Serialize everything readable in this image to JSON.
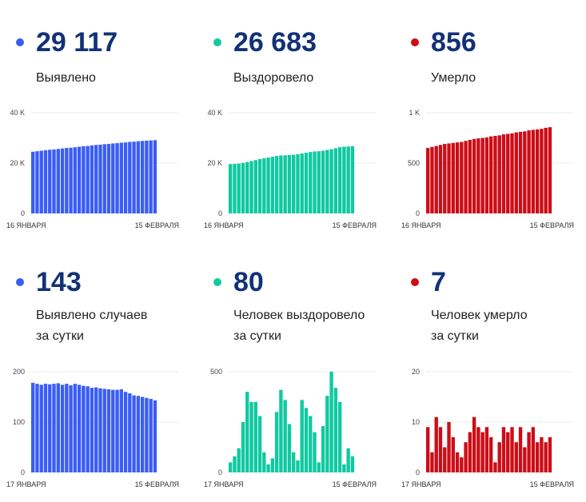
{
  "panels": [
    {
      "number": "29 117",
      "label_lines": [
        "Выявлено"
      ],
      "color": "#3a5df5",
      "chart_data": {
        "type": "bar",
        "ylim": [
          0,
          40000
        ],
        "y_ticks": [
          {
            "value": 0,
            "label": "0"
          },
          {
            "value": 20000,
            "label": "20 K"
          },
          {
            "value": 40000,
            "label": "40 K"
          }
        ],
        "x_labels": [
          "16 ЯНВАРЯ",
          "15 ФЕВРАЛЯ"
        ],
        "values": [
          24500,
          24700,
          24900,
          25100,
          25300,
          25400,
          25600,
          25800,
          26000,
          26100,
          26300,
          26500,
          26700,
          26800,
          27000,
          27200,
          27300,
          27500,
          27600,
          27800,
          27900,
          28100,
          28200,
          28400,
          28500,
          28700,
          28800,
          28900,
          29000,
          29117
        ]
      }
    },
    {
      "number": "26 683",
      "label_lines": [
        "Выздоровело"
      ],
      "color": "#0fc9a1",
      "chart_data": {
        "type": "bar",
        "ylim": [
          0,
          40000
        ],
        "y_ticks": [
          {
            "value": 0,
            "label": "0"
          },
          {
            "value": 20000,
            "label": "20 K"
          },
          {
            "value": 40000,
            "label": "40 K"
          }
        ],
        "x_labels": [
          "16 ЯНВАРЯ",
          "15 ФЕВРАЛЯ"
        ],
        "values": [
          19600,
          19700,
          19800,
          20000,
          20400,
          20800,
          21200,
          21600,
          21900,
          22200,
          22500,
          22800,
          23000,
          23100,
          23200,
          23300,
          23500,
          23800,
          24100,
          24400,
          24600,
          24700,
          24900,
          25200,
          25500,
          25900,
          26300,
          26500,
          26600,
          26683
        ]
      }
    },
    {
      "number": "856",
      "label_lines": [
        "Умерло"
      ],
      "color": "#cc0d17",
      "chart_data": {
        "type": "bar",
        "ylim": [
          0,
          1000
        ],
        "y_ticks": [
          {
            "value": 0,
            "label": "0"
          },
          {
            "value": 500,
            "label": "500"
          },
          {
            "value": 1000,
            "label": "1 K"
          }
        ],
        "x_labels": [
          "16 ЯНВАРЯ",
          "15 ФЕВРАЛЯ"
        ],
        "values": [
          650,
          660,
          670,
          680,
          690,
          695,
          700,
          705,
          710,
          720,
          730,
          740,
          745,
          750,
          755,
          765,
          770,
          775,
          785,
          790,
          795,
          805,
          810,
          815,
          825,
          830,
          835,
          840,
          850,
          856
        ]
      }
    },
    {
      "number": "143",
      "label_lines": [
        "Выявлено случаев",
        "за сутки"
      ],
      "color": "#3a5df5",
      "chart_data": {
        "type": "bar",
        "ylim": [
          0,
          200
        ],
        "y_ticks": [
          {
            "value": 0,
            "label": "0"
          },
          {
            "value": 100,
            "label": "100"
          },
          {
            "value": 200,
            "label": "200"
          }
        ],
        "x_labels": [
          "17 ЯНВАРЯ",
          "15 ФЕВРАЛЯ"
        ],
        "values": [
          178,
          176,
          174,
          176,
          175,
          176,
          177,
          174,
          176,
          173,
          176,
          174,
          172,
          171,
          168,
          169,
          167,
          166,
          165,
          164,
          164,
          165,
          160,
          157,
          153,
          152,
          150,
          148,
          146,
          143
        ]
      }
    },
    {
      "number": "80",
      "label_lines": [
        "Человек выздоровело",
        "за сутки"
      ],
      "color": "#0fc9a1",
      "chart_data": {
        "type": "bar",
        "ylim": [
          0,
          500
        ],
        "y_ticks": [
          {
            "value": 0,
            "label": "0"
          },
          {
            "value": 500,
            "label": "500"
          }
        ],
        "x_labels": [
          "17 ЯНВАРЯ",
          "15 ФЕВРАЛЯ"
        ],
        "values": [
          50,
          80,
          120,
          250,
          400,
          350,
          350,
          280,
          100,
          40,
          70,
          300,
          410,
          360,
          240,
          100,
          60,
          360,
          320,
          280,
          200,
          50,
          230,
          380,
          500,
          420,
          350,
          40,
          120,
          80
        ]
      }
    },
    {
      "number": "7",
      "label_lines": [
        "Человек умерло",
        "за сутки"
      ],
      "color": "#cc0d17",
      "chart_data": {
        "type": "bar",
        "ylim": [
          0,
          20
        ],
        "y_ticks": [
          {
            "value": 0,
            "label": "0"
          },
          {
            "value": 10,
            "label": "10"
          },
          {
            "value": 20,
            "label": "20"
          }
        ],
        "x_labels": [
          "17 ЯНВАРЯ",
          "15 ФЕВРАЛЯ"
        ],
        "values": [
          9,
          4,
          11,
          9,
          5,
          10,
          7,
          4,
          3,
          6,
          8,
          11,
          9,
          8,
          9,
          7,
          2,
          6,
          9,
          8,
          9,
          6,
          9,
          5,
          8,
          9,
          6,
          7,
          6,
          7
        ]
      }
    }
  ]
}
